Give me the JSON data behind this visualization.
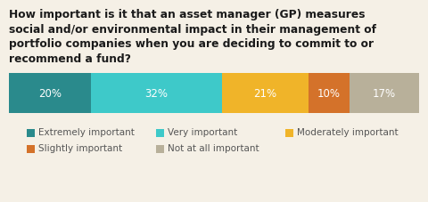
{
  "title": "How important is it that an asset manager (GP) measures\nsocial and/or environmental impact in their management of\nportfolio companies when you are deciding to commit to or\nrecommend a fund?",
  "values": [
    20,
    32,
    21,
    10,
    17
  ],
  "labels": [
    "20%",
    "32%",
    "21%",
    "10%",
    "17%"
  ],
  "colors": [
    "#2a8a8c",
    "#3ec9c9",
    "#f0b429",
    "#d4722a",
    "#b8b09a"
  ],
  "legend_labels": [
    "Extremely important",
    "Very important",
    "Moderately important",
    "Slightly important",
    "Not at all important"
  ],
  "background_color": "#f5f0e6",
  "title_fontsize": 8.8,
  "label_fontsize": 8.5,
  "legend_fontsize": 7.5,
  "title_color": "#1a1a1a",
  "label_color": "#ffffff",
  "legend_color": "#555555"
}
